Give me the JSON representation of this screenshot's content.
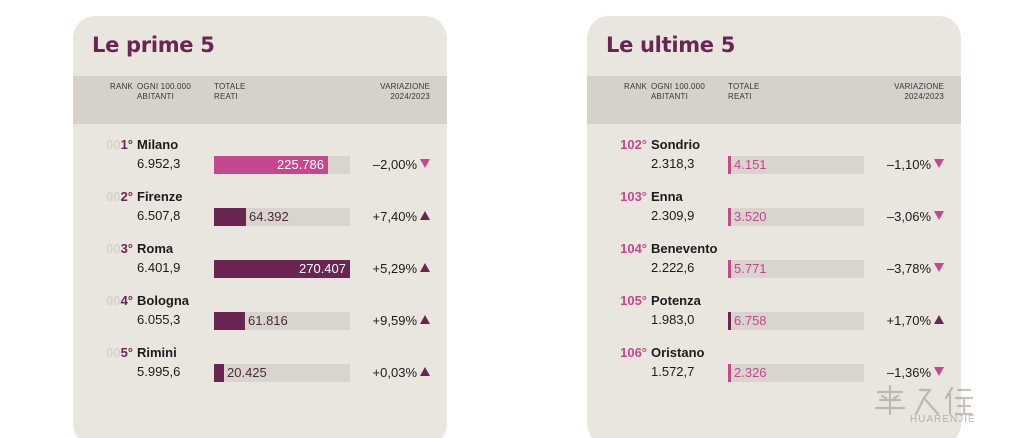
{
  "colors": {
    "panel_bg": "#e9e6df",
    "header_bg": "#d6d2cb",
    "track_bg": "#d9d4cd",
    "dark_purple": "#6b2553",
    "pink": "#c5478e",
    "rank_pad": "#d9d3cc"
  },
  "header": {
    "rank": "RANK",
    "ogni_1": "OGNI 100.000",
    "ogni_2": "ABITANTI",
    "totale_1": "TOTALE",
    "totale_2": "REATI",
    "variazione_1": "VARIAZIONE",
    "variazione_2": "2024/2023"
  },
  "watermark": "HUARENJIE",
  "chart_data": [
    {
      "type": "table",
      "title": "Le prime 5",
      "bar_max": 270407,
      "rows": [
        {
          "rank_pad": "00",
          "rank": "1°",
          "city": "Milano",
          "rate": "6.952,3",
          "total": 225786,
          "total_label": "225.786",
          "change": "–2,00%",
          "direction": "down",
          "bar_color": "#c5478e"
        },
        {
          "rank_pad": "00",
          "rank": "2°",
          "city": "Firenze",
          "rate": "6.507,8",
          "total": 64392,
          "total_label": "64.392",
          "change": "+7,40%",
          "direction": "up",
          "bar_color": "#6b2553"
        },
        {
          "rank_pad": "00",
          "rank": "3°",
          "city": "Roma",
          "rate": "6.401,9",
          "total": 270407,
          "total_label": "270.407",
          "change": "+5,29%",
          "direction": "up",
          "bar_color": "#6b2553"
        },
        {
          "rank_pad": "00",
          "rank": "4°",
          "city": "Bologna",
          "rate": "6.055,3",
          "total": 61816,
          "total_label": "61.816",
          "change": "+9,59%",
          "direction": "up",
          "bar_color": "#6b2553"
        },
        {
          "rank_pad": "00",
          "rank": "5°",
          "city": "Rimini",
          "rate": "5.995,6",
          "total": 20425,
          "total_label": "20.425",
          "change": "+0,03%",
          "direction": "up",
          "bar_color": "#6b2553"
        }
      ]
    },
    {
      "type": "table",
      "title": "Le ultime 5",
      "bar_max": 270407,
      "rows": [
        {
          "rank_pad": "",
          "rank": "102°",
          "city": "Sondrio",
          "rate": "2.318,3",
          "total": 4151,
          "total_label": "4.151",
          "change": "–1,10%",
          "direction": "down",
          "bar_color": "#c5478e"
        },
        {
          "rank_pad": "",
          "rank": "103°",
          "city": "Enna",
          "rate": "2.309,9",
          "total": 3520,
          "total_label": "3.520",
          "change": "–3,06%",
          "direction": "down",
          "bar_color": "#c5478e"
        },
        {
          "rank_pad": "",
          "rank": "104°",
          "city": "Benevento",
          "rate": "2.222,6",
          "total": 5771,
          "total_label": "5.771",
          "change": "–3,78%",
          "direction": "down",
          "bar_color": "#c5478e"
        },
        {
          "rank_pad": "",
          "rank": "105°",
          "city": "Potenza",
          "rate": "1.983,0",
          "total": 6758,
          "total_label": "6.758",
          "change": "+1,70%",
          "direction": "up",
          "bar_color": "#6b2553"
        },
        {
          "rank_pad": "",
          "rank": "106°",
          "city": "Oristano",
          "rate": "1.572,7",
          "total": 2326,
          "total_label": "2.326",
          "change": "–1,36%",
          "direction": "down",
          "bar_color": "#c5478e"
        }
      ]
    }
  ]
}
